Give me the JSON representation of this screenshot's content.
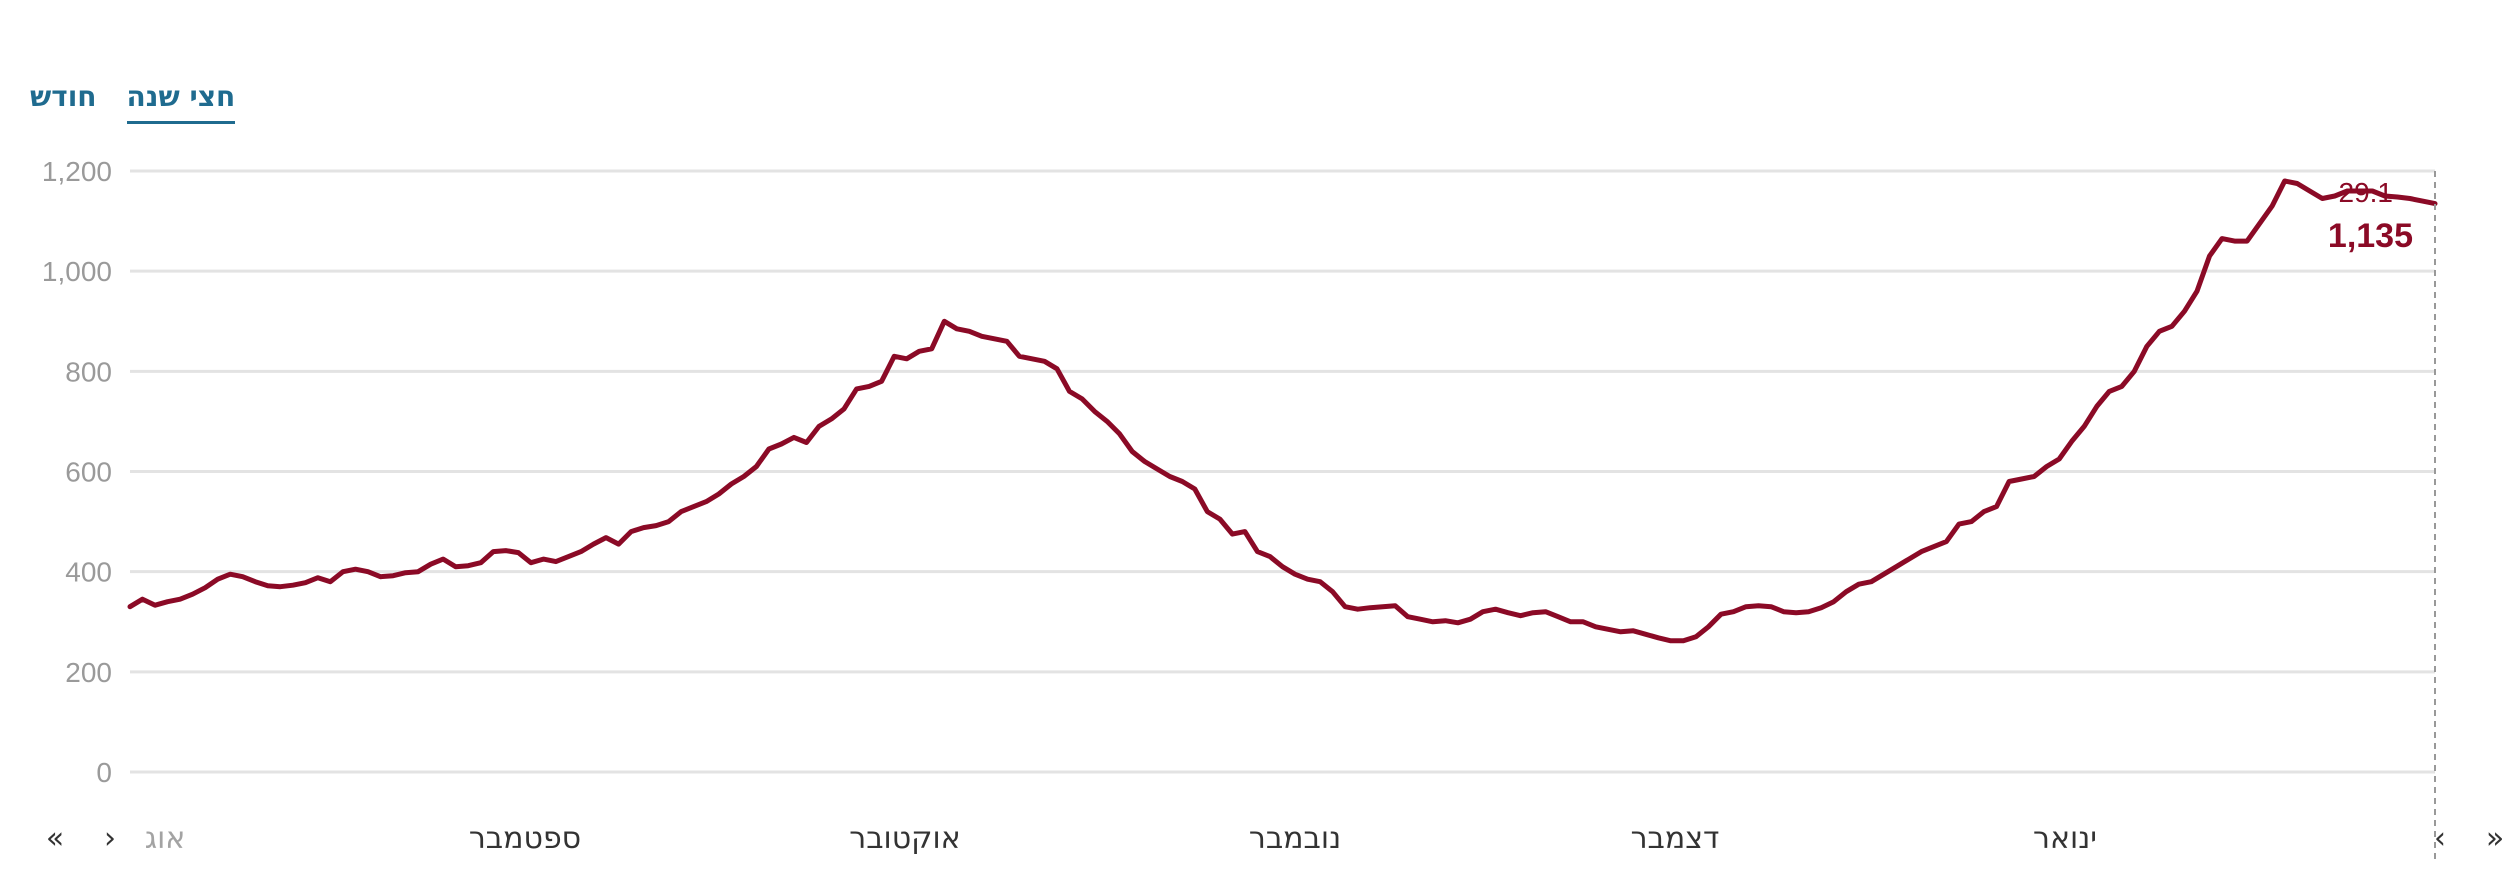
{
  "tabs": [
    {
      "label": "חצי שנה",
      "active": true
    },
    {
      "label": "חודש",
      "active": false
    }
  ],
  "nav": {
    "first": "«",
    "prev": "›",
    "next": "‹",
    "last": "»"
  },
  "colors": {
    "line": "#8b0a26",
    "grid": "#e3e3e3",
    "tab": "#1f6b8f"
  },
  "tooltip": {
    "date": "29.1",
    "value": "1,135"
  },
  "chart_data": {
    "type": "line",
    "ylim": [
      0,
      1200
    ],
    "yticks": [
      0,
      200,
      400,
      600,
      800,
      1000,
      1200
    ],
    "ytick_labels": [
      "0",
      "200",
      "400",
      "600",
      "800",
      "1,000",
      "1,200"
    ],
    "grid": true,
    "x_labels": [
      "אוג",
      "ספטמבר",
      "אוקטובר",
      "נובמבר",
      "דצמבר",
      "ינואר"
    ],
    "series": [
      {
        "values": [
          330,
          345,
          333,
          340,
          345,
          355,
          368,
          385,
          395,
          390,
          380,
          372,
          370,
          373,
          378,
          388,
          380,
          400,
          405,
          400,
          390,
          392,
          398,
          400,
          415,
          425,
          410,
          412,
          418,
          440,
          442,
          438,
          418,
          425,
          420,
          430,
          440,
          455,
          468,
          455,
          480,
          488,
          492,
          500,
          520,
          530,
          540,
          555,
          575,
          590,
          610,
          645,
          655,
          668,
          658,
          690,
          705,
          725,
          765,
          770,
          780,
          830,
          825,
          840,
          845,
          900,
          885,
          880,
          870,
          865,
          860,
          830,
          825,
          820,
          805,
          760,
          745,
          720,
          700,
          675,
          640,
          620,
          605,
          590,
          580,
          565,
          520,
          505,
          475,
          480,
          440,
          430,
          410,
          395,
          385,
          380,
          360,
          330,
          325,
          328,
          330,
          332,
          310,
          305,
          300,
          302,
          298,
          305,
          320,
          325,
          318,
          312,
          318,
          320,
          310,
          300,
          300,
          290,
          285,
          280,
          282,
          275,
          268,
          262,
          262,
          270,
          290,
          315,
          320,
          330,
          332,
          330,
          320,
          318,
          320,
          328,
          340,
          360,
          375,
          380,
          395,
          410,
          425,
          440,
          450,
          460,
          495,
          500,
          520,
          530,
          580,
          585,
          590,
          610,
          625,
          660,
          690,
          730,
          760,
          770,
          800,
          850,
          880,
          890,
          920,
          960,
          1030,
          1065,
          1060,
          1060,
          1095,
          1130,
          1180,
          1175,
          1160,
          1145,
          1150,
          1160,
          1160,
          1160,
          1150,
          1148,
          1145,
          1140,
          1135
        ]
      }
    ]
  }
}
